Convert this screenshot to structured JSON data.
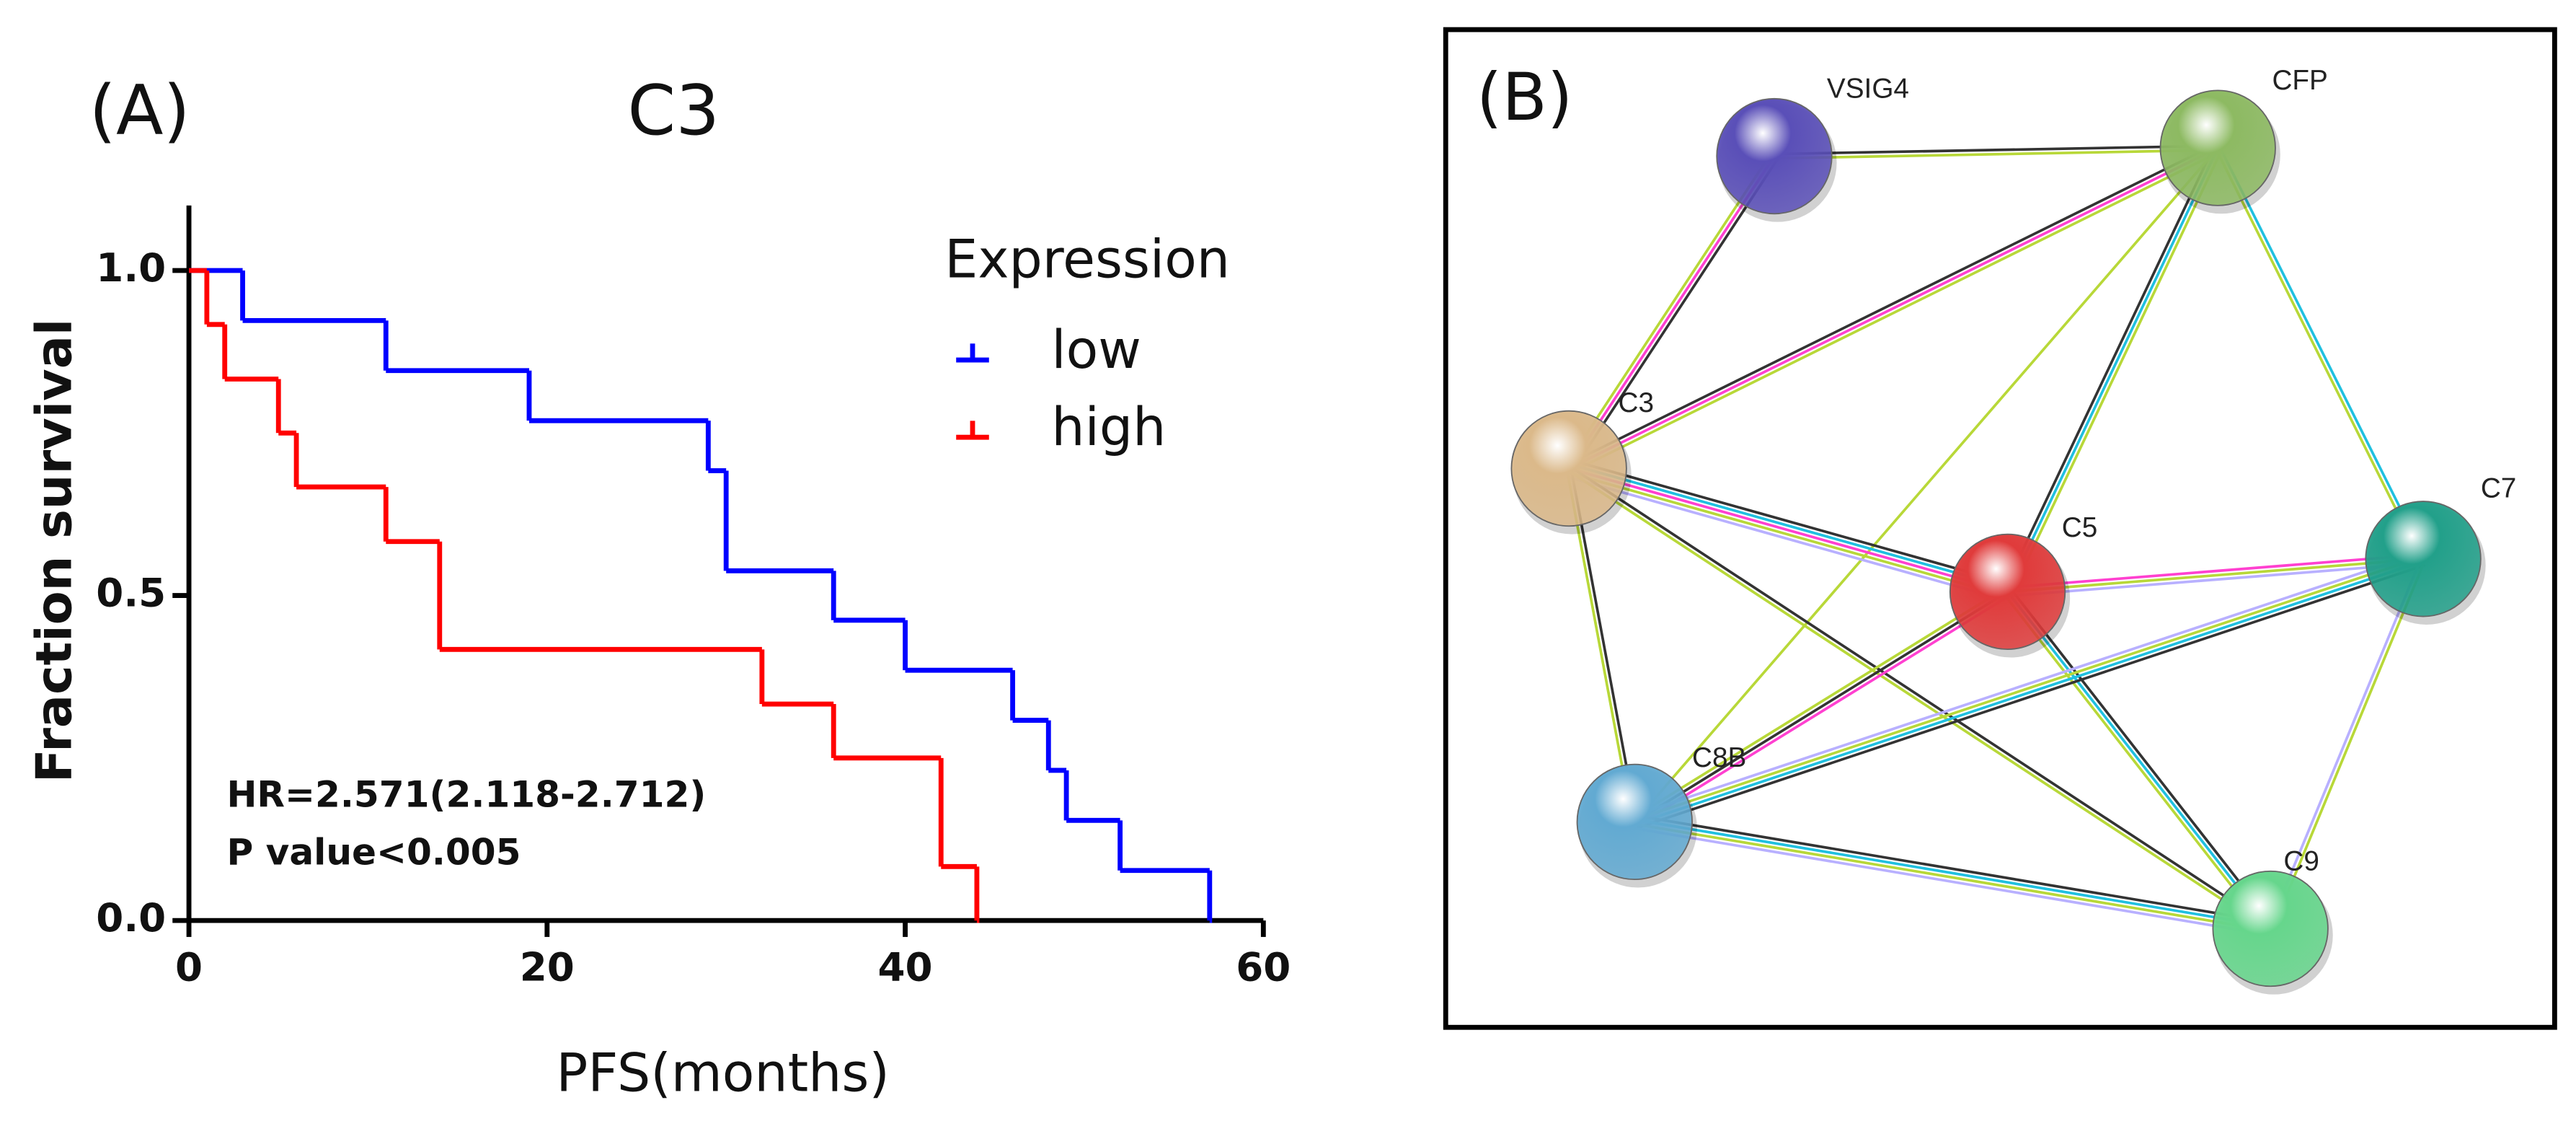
{
  "chart_data": {
    "type": "step",
    "panel_label": "(A)",
    "title": "C3",
    "xlabel": "PFS(months)",
    "ylabel": "Fraction survival",
    "legend_title": "Expression",
    "annotations": [
      "HR=2.571(2.118-2.712)",
      "P value<0.005"
    ],
    "xlim": [
      0,
      60
    ],
    "xticks": [
      0,
      20,
      40,
      60
    ],
    "ylim": [
      0,
      1.1
    ],
    "yticks": [
      {
        "value": 0,
        "label": "0.0"
      },
      0.5,
      {
        "value": 1,
        "label": "1.0"
      }
    ],
    "series": [
      {
        "name": "low",
        "color": "#0000ff",
        "x": [
          0,
          3,
          11,
          19,
          29,
          30,
          36,
          40,
          46,
          48,
          49,
          52,
          57
        ],
        "values": [
          1,
          0.923,
          0.846,
          0.769,
          0.692,
          0.538,
          0.462,
          0.385,
          0.308,
          0.231,
          0.154,
          0.077,
          0
        ]
      },
      {
        "name": "high",
        "color": "#ff0000",
        "x": [
          0,
          1,
          2,
          5,
          6,
          11,
          14,
          32,
          36,
          42,
          44
        ],
        "values": [
          1,
          0.917,
          0.833,
          0.75,
          0.667,
          0.583,
          0.417,
          0.333,
          0.25,
          0.083,
          0
        ]
      }
    ]
  },
  "network": {
    "panel_label": "(B)",
    "nodes": [
      {
        "label": "VSIG4"
      },
      {
        "label": "CFP"
      },
      {
        "label": "C3"
      },
      {
        "label": "C5"
      },
      {
        "label": "C7"
      },
      {
        "label": "C8B"
      },
      {
        "label": "C9"
      }
    ]
  }
}
